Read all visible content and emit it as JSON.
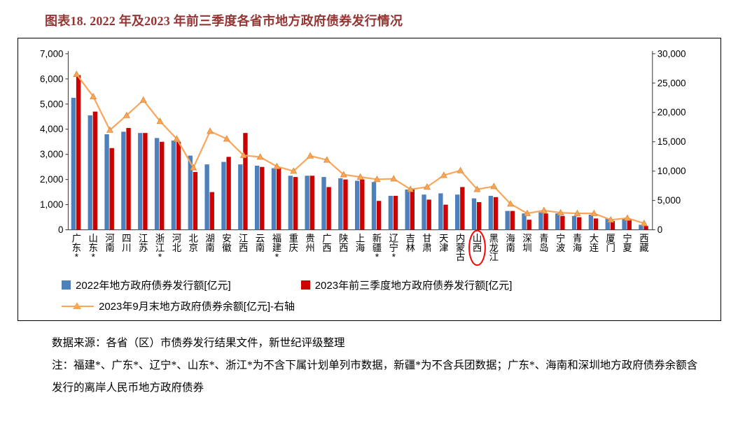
{
  "title": "图表18. 2022 年及2023 年前三季度各省市地方政府债券发行情况",
  "chart_data": {
    "type": "bar",
    "subtype": "grouped bars with overlay line on secondary axis",
    "categories": [
      "广东*",
      "山东*",
      "河南",
      "四川",
      "江苏",
      "浙江*",
      "河北",
      "北京",
      "湖南",
      "安徽",
      "江西",
      "云南",
      "福建*",
      "重庆",
      "贵州",
      "广西",
      "陕西",
      "上海",
      "新疆*",
      "辽宁*",
      "吉林",
      "甘肃",
      "天津",
      "内蒙古",
      "山西",
      "黑龙江",
      "海南",
      "深圳",
      "青岛",
      "宁波",
      "青海",
      "大连",
      "厦门",
      "宁夏",
      "西藏"
    ],
    "series": [
      {
        "name": "2022年地方政府债券发行额[亿元]",
        "type": "bar",
        "axis": "left",
        "color": "#4E80BC",
        "values": [
          5250,
          4550,
          3800,
          3900,
          3850,
          3650,
          3550,
          2950,
          2600,
          2700,
          2600,
          2550,
          2450,
          2150,
          2150,
          2100,
          2050,
          1950,
          1900,
          1350,
          1600,
          1400,
          1450,
          1400,
          1250,
          1350,
          750,
          650,
          700,
          650,
          550,
          600,
          450,
          450,
          200
        ]
      },
      {
        "name": "2023年前三季度地方政府债券发行额[亿元]",
        "type": "bar",
        "axis": "left",
        "color": "#CC0000",
        "values": [
          6150,
          4700,
          3250,
          4050,
          3850,
          3500,
          3500,
          2300,
          1500,
          2900,
          3850,
          2500,
          2450,
          2100,
          2150,
          1700,
          2000,
          2000,
          1150,
          1350,
          1600,
          1200,
          1000,
          1700,
          1100,
          1300,
          750,
          400,
          650,
          550,
          500,
          450,
          350,
          400,
          150
        ]
      },
      {
        "name": "2023年9月末地方政府债券余额[亿元]-右轴",
        "type": "line",
        "axis": "right",
        "color": "#F9A65A",
        "values": [
          26500,
          22700,
          17000,
          19500,
          22100,
          18500,
          15500,
          10600,
          16800,
          15500,
          12700,
          12400,
          10800,
          10000,
          12600,
          11900,
          9400,
          9000,
          8600,
          8700,
          6900,
          7300,
          9300,
          10100,
          6900,
          7400,
          4400,
          2800,
          3300,
          2900,
          2800,
          2800,
          1700,
          2000,
          1100
        ]
      }
    ],
    "left_axis": {
      "min": 0,
      "max": 7000,
      "step": 1000,
      "tick_labels": [
        "0",
        "1,000",
        "2,000",
        "3,000",
        "4,000",
        "5,000",
        "6,000",
        "7,000"
      ]
    },
    "right_axis": {
      "min": 0,
      "max": 30000,
      "step": 5000,
      "tick_labels": [
        "0",
        "5,000",
        "10,000",
        "15,000",
        "20,000",
        "25,000",
        "30,000"
      ]
    },
    "grid": false,
    "legend_position": "bottom",
    "annotation": {
      "shape": "ellipse",
      "color": "#FF0000",
      "category": "山西",
      "category_index": 24
    }
  },
  "notes": {
    "source": "数据来源：各省（区）市债券发行结果文件，新世纪评级整理",
    "footnote": "注：福建*、广东*、辽宁*、山东*、浙江*为不含下属计划单列市数据，新疆*为不含兵团数据；广东*、海南和深圳地方政府债券余额含发行的离岸人民币地方政府债券"
  }
}
